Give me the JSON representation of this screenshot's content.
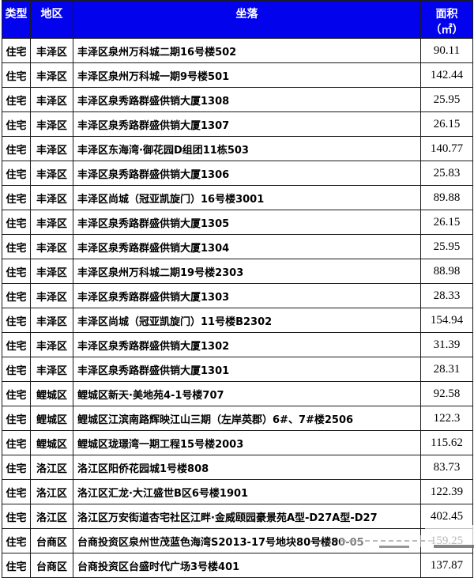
{
  "table": {
    "columns": [
      {
        "label": "类型"
      },
      {
        "label": "地区"
      },
      {
        "label": "坐落"
      },
      {
        "label": "面积",
        "label_line2": "（㎡）"
      }
    ],
    "rows": [
      {
        "type": "住宅",
        "district": "丰泽区",
        "location": "丰泽区泉州万科城二期16号楼502",
        "area": "90.11"
      },
      {
        "type": "住宅",
        "district": "丰泽区",
        "location": "丰泽区泉州万科城一期9号楼501",
        "area": "142.44"
      },
      {
        "type": "住宅",
        "district": "丰泽区",
        "location": "丰泽区泉秀路群盛供销大厦1308",
        "area": "25.95"
      },
      {
        "type": "住宅",
        "district": "丰泽区",
        "location": "丰泽区泉秀路群盛供销大厦1307",
        "area": "26.15"
      },
      {
        "type": "住宅",
        "district": "丰泽区",
        "location": "丰泽区东海湾·御花园D组团11栋503",
        "area": "140.77"
      },
      {
        "type": "住宅",
        "district": "丰泽区",
        "location": "丰泽区泉秀路群盛供销大厦1306",
        "area": "25.83"
      },
      {
        "type": "住宅",
        "district": "丰泽区",
        "location": "丰泽区尚城（冠亚凯旋门）16号楼3001",
        "area": "89.88"
      },
      {
        "type": "住宅",
        "district": "丰泽区",
        "location": "丰泽区泉秀路群盛供销大厦1305",
        "area": "26.15"
      },
      {
        "type": "住宅",
        "district": "丰泽区",
        "location": "丰泽区泉秀路群盛供销大厦1304",
        "area": "25.95"
      },
      {
        "type": "住宅",
        "district": "丰泽区",
        "location": "丰泽区泉州万科城二期19号楼2303",
        "area": "88.98"
      },
      {
        "type": "住宅",
        "district": "丰泽区",
        "location": "丰泽区泉秀路群盛供销大厦1303",
        "area": "28.33"
      },
      {
        "type": "住宅",
        "district": "丰泽区",
        "location": "丰泽区尚城（冠亚凯旋门）11号楼B2302",
        "area": "154.94"
      },
      {
        "type": "住宅",
        "district": "丰泽区",
        "location": "丰泽区泉秀路群盛供销大厦1302",
        "area": "31.39"
      },
      {
        "type": "住宅",
        "district": "丰泽区",
        "location": "丰泽区泉秀路群盛供销大厦1301",
        "area": "28.31"
      },
      {
        "type": "住宅",
        "district": "鲤城区",
        "location": "鲤城区新天·美地苑4-1号楼707",
        "area": "92.58"
      },
      {
        "type": "住宅",
        "district": "鲤城区",
        "location": "鲤城区江滨南路辉映江山三期（左岸英郡）6#、7#楼2506",
        "area": "122.3"
      },
      {
        "type": "住宅",
        "district": "鲤城区",
        "location": "鲤城区珑璟湾一期工程15号楼2003",
        "area": "115.62"
      },
      {
        "type": "住宅",
        "district": "洛江区",
        "location": "洛江区阳侨花园城1号楼808",
        "area": "83.73"
      },
      {
        "type": "住宅",
        "district": "洛江区",
        "location": "洛江区汇龙·大江盛世B区6号楼1901",
        "area": "122.39"
      },
      {
        "type": "住宅",
        "district": "洛江区",
        "location": "洛江区万安街道杏宅社区江畔·金威颐园豪景苑A型-D27A型-D27",
        "area": "402.45"
      },
      {
        "type": "住宅",
        "district": "台商区",
        "location": "台商投资区泉州世茂蓝色海湾S2013-17号地块80号楼80-05",
        "area": "159.25"
      },
      {
        "type": "住宅",
        "district": "台商区",
        "location": "台商投资区台盛时代广场3号楼401",
        "area": "137.87"
      }
    ]
  },
  "colors": {
    "header_bg": "#0202ec",
    "header_text": "#ffffff",
    "border": "#1a1a1a"
  }
}
